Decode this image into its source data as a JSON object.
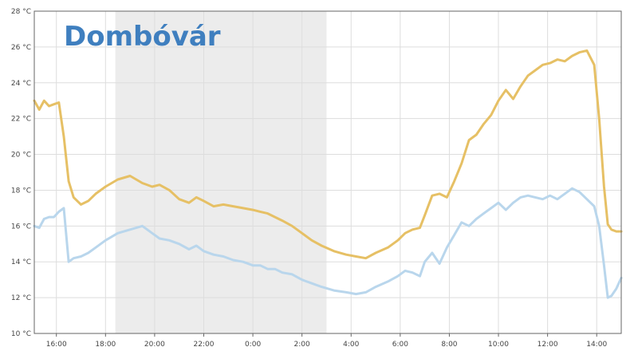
{
  "chart_data": {
    "type": "line",
    "title": "Dombóvár",
    "xlabel": "",
    "ylabel": "",
    "ylim": [
      10,
      28
    ],
    "y_ticks": [
      "10 °C",
      "12 °C",
      "14 °C",
      "16 °C",
      "18 °C",
      "20 °C",
      "22 °C",
      "24 °C",
      "26 °C",
      "28 °C"
    ],
    "x_ticks": [
      "16:00",
      "18:00",
      "20:00",
      "22:00",
      "0:00",
      "2:00",
      "4:00",
      "6:00",
      "8:00",
      "10:00",
      "12:00",
      "14:00"
    ],
    "x_tick_hours": [
      16,
      18,
      20,
      22,
      24,
      26,
      28,
      30,
      32,
      34,
      36,
      38
    ],
    "xlim_hours": [
      15.1,
      39.0
    ],
    "shaded_band_hours": [
      18.4,
      27.0
    ],
    "grid": true,
    "legend": "none",
    "colors": {
      "title": "#3f7fbf",
      "shaded_band": "#ececec",
      "grid": "#dddddd",
      "axis": "#666666",
      "series_1": "#e6c065",
      "series_2": "#b9d6ec"
    },
    "series": [
      {
        "x": [
          15.1,
          15.3,
          15.5,
          15.7,
          15.9,
          16.1,
          16.3,
          16.5,
          16.7,
          17.0,
          17.3,
          17.6,
          18.0,
          18.5,
          19.0,
          19.5,
          19.9,
          20.2,
          20.6,
          21.0,
          21.4,
          21.7,
          22.0,
          22.4,
          22.8,
          23.2,
          23.6,
          24.0,
          24.3,
          24.6,
          24.9,
          25.2,
          25.6,
          26.0,
          26.4,
          26.8,
          27.3,
          27.8,
          28.2,
          28.6,
          29.0,
          29.5,
          29.9,
          30.2,
          30.5,
          30.8,
          31.0,
          31.3,
          31.6,
          31.9,
          32.2,
          32.5,
          32.8,
          33.1,
          33.4,
          33.7,
          34.0,
          34.3,
          34.6,
          34.9,
          35.2,
          35.5,
          35.8,
          36.1,
          36.4,
          36.7,
          37.0,
          37.3,
          37.6,
          37.9,
          38.1,
          38.3,
          38.45,
          38.6,
          38.8,
          39.0
        ],
        "values": [
          23.0,
          22.5,
          23.0,
          22.7,
          22.8,
          22.9,
          21.0,
          18.5,
          17.6,
          17.2,
          17.4,
          17.8,
          18.2,
          18.6,
          18.8,
          18.4,
          18.2,
          18.3,
          18.0,
          17.5,
          17.3,
          17.6,
          17.4,
          17.1,
          17.2,
          17.1,
          17.0,
          16.9,
          16.8,
          16.7,
          16.5,
          16.3,
          16.0,
          15.6,
          15.2,
          14.9,
          14.6,
          14.4,
          14.3,
          14.2,
          14.5,
          14.8,
          15.2,
          15.6,
          15.8,
          15.9,
          16.6,
          17.7,
          17.8,
          17.6,
          18.5,
          19.5,
          20.8,
          21.1,
          21.7,
          22.2,
          23.0,
          23.6,
          23.1,
          23.8,
          24.4,
          24.7,
          25.0,
          25.1,
          25.3,
          25.2,
          25.5,
          25.7,
          25.8,
          25.0,
          22.0,
          18.2,
          16.1,
          15.8,
          15.7,
          15.7
        ]
      },
      {
        "x": [
          15.1,
          15.3,
          15.5,
          15.7,
          15.9,
          16.1,
          16.3,
          16.5,
          16.7,
          17.0,
          17.3,
          17.6,
          18.0,
          18.5,
          19.0,
          19.5,
          19.9,
          20.2,
          20.6,
          21.0,
          21.4,
          21.7,
          22.0,
          22.4,
          22.8,
          23.2,
          23.6,
          24.0,
          24.3,
          24.6,
          24.9,
          25.2,
          25.6,
          26.0,
          26.4,
          26.8,
          27.3,
          27.8,
          28.2,
          28.6,
          29.0,
          29.5,
          29.9,
          30.2,
          30.5,
          30.8,
          31.0,
          31.3,
          31.6,
          31.9,
          32.2,
          32.5,
          32.8,
          33.1,
          33.4,
          33.7,
          34.0,
          34.3,
          34.6,
          34.9,
          35.2,
          35.5,
          35.8,
          36.1,
          36.4,
          36.7,
          37.0,
          37.3,
          37.6,
          37.9,
          38.1,
          38.3,
          38.45,
          38.6,
          38.8,
          39.0
        ],
        "values": [
          16.0,
          15.9,
          16.4,
          16.5,
          16.5,
          16.8,
          17.0,
          14.0,
          14.2,
          14.3,
          14.5,
          14.8,
          15.2,
          15.6,
          15.8,
          16.0,
          15.6,
          15.3,
          15.2,
          15.0,
          14.7,
          14.9,
          14.6,
          14.4,
          14.3,
          14.1,
          14.0,
          13.8,
          13.8,
          13.6,
          13.6,
          13.4,
          13.3,
          13.0,
          12.8,
          12.6,
          12.4,
          12.3,
          12.2,
          12.3,
          12.6,
          12.9,
          13.2,
          13.5,
          13.4,
          13.2,
          14.0,
          14.5,
          13.9,
          14.8,
          15.5,
          16.2,
          16.0,
          16.4,
          16.7,
          17.0,
          17.3,
          16.9,
          17.3,
          17.6,
          17.7,
          17.6,
          17.5,
          17.7,
          17.5,
          17.8,
          18.1,
          17.9,
          17.5,
          17.1,
          16.0,
          13.8,
          12.0,
          12.1,
          12.5,
          13.1
        ]
      }
    ]
  }
}
